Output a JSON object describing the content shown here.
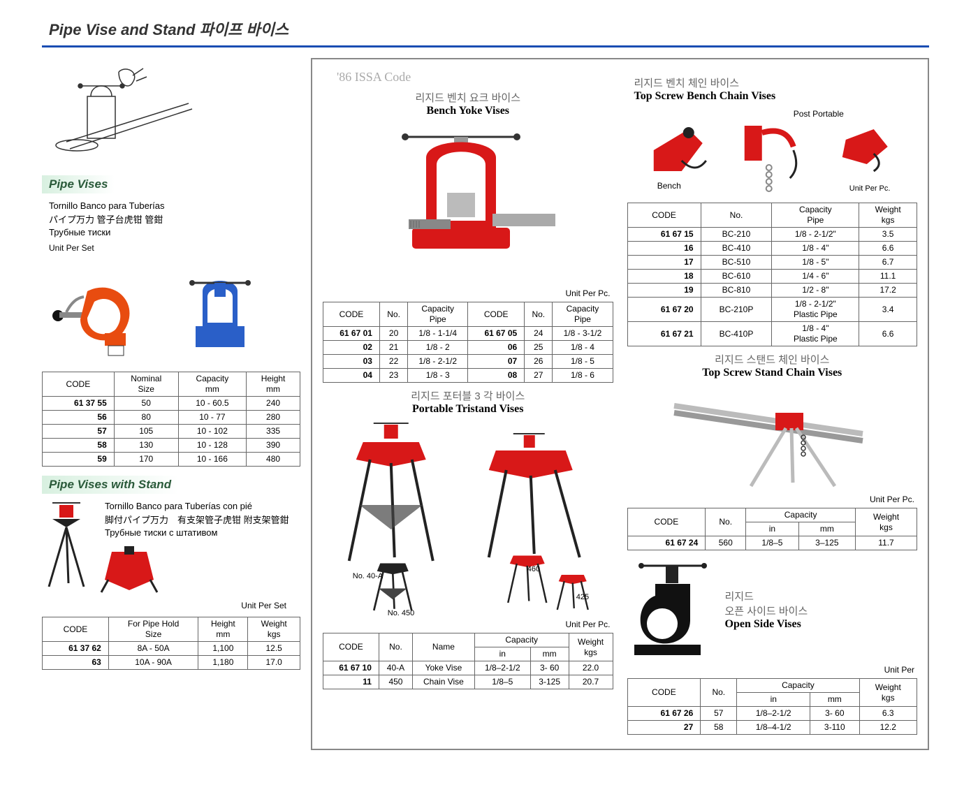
{
  "page_title": "Pipe Vise and Stand 파이프 바이스",
  "issa_label": "'86 ISSA Code",
  "left": {
    "pipe_vises": {
      "header": "Pipe Vises",
      "sub1": "Tornillo Banco para Tuberías",
      "sub2": "パイプ万力 管子台虎钳 管鉗",
      "sub3": "Трубные тиски",
      "unit": "Unit Per Set",
      "cols": [
        "CODE",
        "Nominal\nSize",
        "Capacity\nmm",
        "Height\nmm"
      ],
      "rows": [
        [
          "61 37 55",
          "50",
          "10 -  60.5",
          "240"
        ],
        [
          "56",
          "80",
          "10 -  77",
          "280"
        ],
        [
          "57",
          "105",
          "10 - 102",
          "335"
        ],
        [
          "58",
          "130",
          "10 - 128",
          "390"
        ],
        [
          "59",
          "170",
          "10 - 166",
          "480"
        ]
      ]
    },
    "with_stand": {
      "header": "Pipe Vises with Stand",
      "sub1": "Tornillo Banco para Tuberías con pié",
      "sub2": "脚付パイプ万力　有支架管子虎钳 附支架管鉗",
      "sub3": "Трубные тиски с штативом",
      "unit": "Unit Per Set",
      "cols": [
        "CODE",
        "For Pipe Hold\nSize",
        "Height\nmm",
        "Weight\nkgs"
      ],
      "rows": [
        [
          "61 37 62",
          "8A -  50A",
          "1,100",
          "12.5"
        ],
        [
          "63",
          "10A -  90A",
          "1,180",
          "17.0"
        ]
      ]
    }
  },
  "mid": {
    "bench_yoke": {
      "kor": "리지드 벤치 요크 바이스",
      "eng": "Bench Yoke Vises",
      "unit": "Unit Per Pc.",
      "cols": [
        "CODE",
        "No.",
        "Capacity\nPipe",
        "CODE",
        "No.",
        "Capacity\nPipe"
      ],
      "rows": [
        [
          "61 67 01",
          "20",
          "1/8 - 1-1/4",
          "61 67 05",
          "24",
          "1/8 - 3-1/2"
        ],
        [
          "02",
          "21",
          "1/8 - 2",
          "06",
          "25",
          "1/8 - 4"
        ],
        [
          "03",
          "22",
          "1/8 - 2-1/2",
          "07",
          "26",
          "1/8 - 5"
        ],
        [
          "04",
          "23",
          "1/8 - 3",
          "08",
          "27",
          "1/8 - 6"
        ]
      ]
    },
    "tristand": {
      "kor": "리지드 포터블 3 각 바이스",
      "eng": "Portable Tristand Vises",
      "label_40a": "No. 40-A",
      "label_450": "No. 450",
      "label_460": "460",
      "label_425": "425",
      "unit": "Unit Per Pc.",
      "cols_top": [
        "CODE",
        "No.",
        "Name",
        "Capacity",
        "Weight\nkgs"
      ],
      "cols_cap": [
        "in",
        "mm"
      ],
      "rows": [
        [
          "61 67 10",
          "40-A",
          "Yoke Vise",
          "1/8–2-1/2",
          "3-  60",
          "22.0"
        ],
        [
          "11",
          "450",
          "Chain Vise",
          "1/8–5",
          "3-125",
          "20.7"
        ]
      ]
    }
  },
  "right": {
    "bench_chain": {
      "kor": "리지드 벤치 체인 바이스",
      "eng": "Top Screw Bench Chain Vises",
      "lbl_bench": "Bench",
      "lbl_post": "Post Portable",
      "unit": "Unit Per Pc.",
      "cols": [
        "CODE",
        "No.",
        "Capacity\nPipe",
        "Weight\nkgs"
      ],
      "rows1": [
        [
          "61 67 15",
          "BC-210",
          "1/8 - 2-1/2\"",
          "3.5"
        ],
        [
          "16",
          "BC-410",
          "1/8 -    4\"",
          "6.6"
        ],
        [
          "17",
          "BC-510",
          "1/8 -    5\"",
          "6.7"
        ],
        [
          "18",
          "BC-610",
          "1/4 -    6\"",
          "11.1"
        ],
        [
          "19",
          "BC-810",
          "1/2 -    8\"",
          "17.2"
        ]
      ],
      "rows2": [
        [
          "61 67 20",
          "BC-210P",
          "1/8 - 2-1/2\"\nPlastic Pipe",
          "3.4"
        ]
      ],
      "rows3": [
        [
          "61 67 21",
          "BC-410P",
          "1/8 -    4\"\nPlastic Pipe",
          "6.6"
        ]
      ]
    },
    "stand_chain": {
      "kor": "리지드 스탠드 체인 바이스",
      "eng": "Top Screw Stand Chain Vises",
      "unit": "Unit Per Pc.",
      "cols_top": [
        "CODE",
        "No.",
        "Capacity",
        "Weight\nkgs"
      ],
      "cols_cap": [
        "in",
        "mm"
      ],
      "rows": [
        [
          "61 67 24",
          "560",
          "1/8–5",
          "3–125",
          "11.7"
        ]
      ]
    },
    "open_side": {
      "kor": "리지드\n오픈 사이드 바이스",
      "eng": "Open Side Vises",
      "unit": "Unit Per",
      "cols_top": [
        "CODE",
        "No.",
        "Capacity",
        "Weight\nkgs"
      ],
      "cols_cap": [
        "in",
        "mm"
      ],
      "rows": [
        [
          "61 67 26",
          "57",
          "1/8–2-1/2",
          "3-  60",
          "6.3"
        ],
        [
          "27",
          "58",
          "1/8–4-1/2",
          "3-110",
          "12.2"
        ]
      ]
    }
  },
  "colors": {
    "orange": "#e84c10",
    "blue": "#2a5fc8",
    "red": "#d81818",
    "gray": "#888"
  }
}
